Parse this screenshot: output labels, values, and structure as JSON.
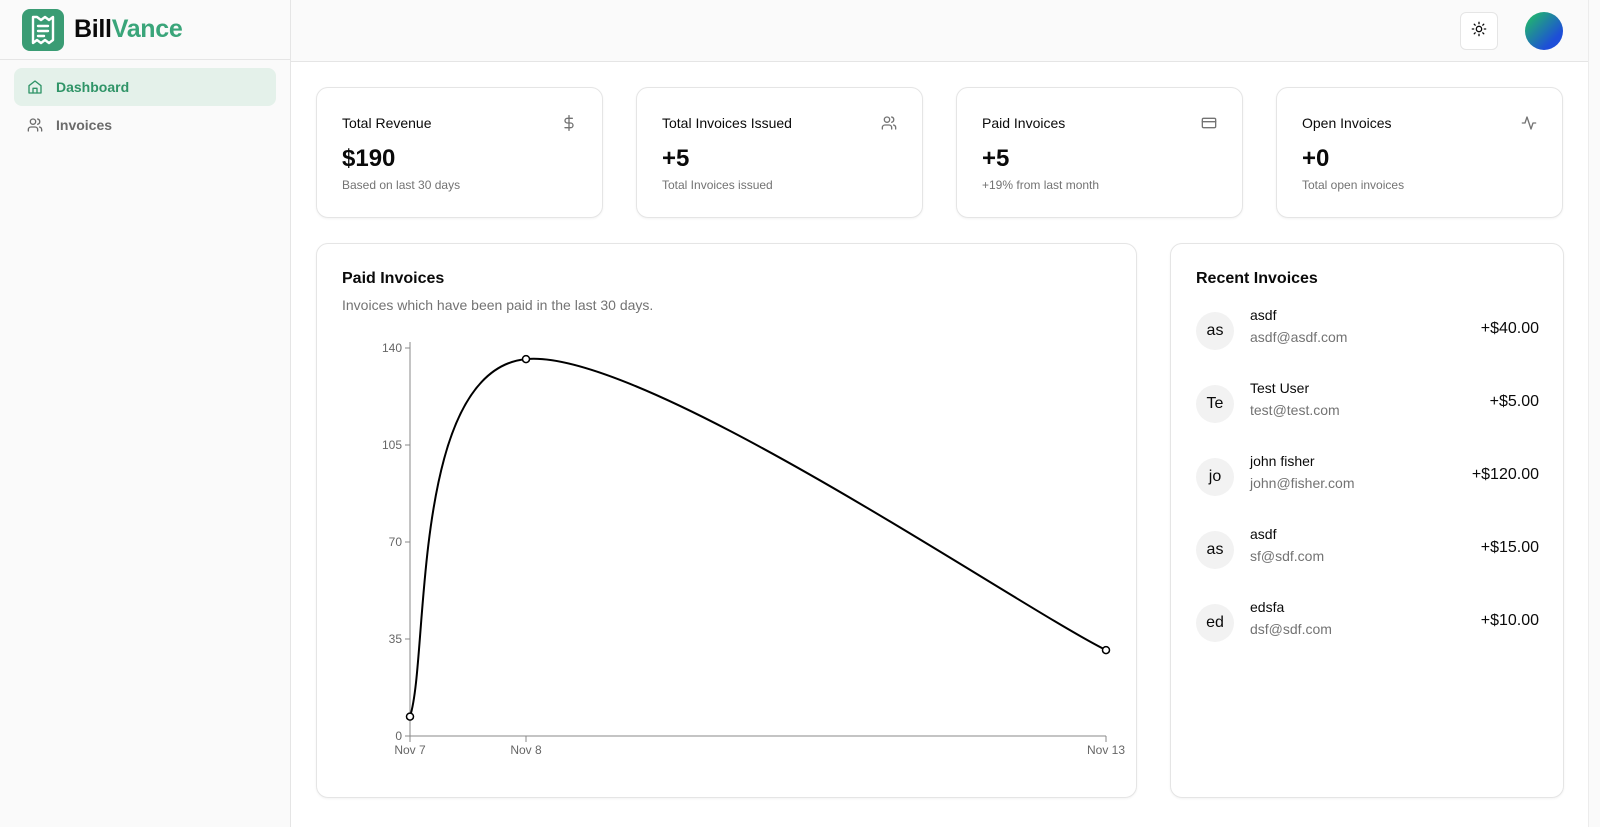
{
  "brand": {
    "name_part1": "Bill",
    "name_part2": "Vance"
  },
  "sidebar": {
    "items": [
      {
        "label": "Dashboard",
        "icon": "home-icon",
        "active": true
      },
      {
        "label": "Invoices",
        "icon": "users-icon",
        "active": false
      }
    ]
  },
  "header": {
    "theme_icon": "sun-icon",
    "avatar": "user-avatar"
  },
  "stats": [
    {
      "title": "Total Revenue",
      "value": "$190",
      "sub": "Based on last 30 days",
      "icon": "dollar-icon"
    },
    {
      "title": "Total Invoices Issued",
      "value": "+5",
      "sub": "Total Invoices issued",
      "icon": "users-icon"
    },
    {
      "title": "Paid Invoices",
      "value": "+5",
      "sub": "+19% from last month",
      "icon": "credit-card-icon"
    },
    {
      "title": "Open Invoices",
      "value": "+0",
      "sub": "Total open invoices",
      "icon": "activity-icon"
    }
  ],
  "chart_card": {
    "title": "Paid Invoices",
    "description": "Invoices which have been paid in the last 30 days."
  },
  "chart_data": {
    "type": "line",
    "x": [
      "Nov 7",
      "Nov 8",
      "Nov 13"
    ],
    "values": [
      7,
      136,
      31
    ],
    "ylim": [
      0,
      140
    ],
    "yticks": [
      0,
      35,
      70,
      105,
      140
    ],
    "title": "",
    "xlabel": "",
    "ylabel": "",
    "grid": false,
    "line_color": "#000000"
  },
  "recent": {
    "title": "Recent Invoices",
    "items": [
      {
        "initials": "as",
        "name": "asdf",
        "email": "asdf@asdf.com",
        "amount": "+$40.00"
      },
      {
        "initials": "Te",
        "name": "Test User",
        "email": "test@test.com",
        "amount": "+$5.00"
      },
      {
        "initials": "jo",
        "name": "john fisher",
        "email": "john@fisher.com",
        "amount": "+$120.00"
      },
      {
        "initials": "as",
        "name": "asdf",
        "email": "sf@sdf.com",
        "amount": "+$15.00"
      },
      {
        "initials": "ed",
        "name": "edsfa",
        "email": "dsf@sdf.com",
        "amount": "+$10.00"
      }
    ]
  },
  "colors": {
    "accent": "#3aa57a",
    "active_bg": "#e4f1ea",
    "muted": "#737373"
  }
}
